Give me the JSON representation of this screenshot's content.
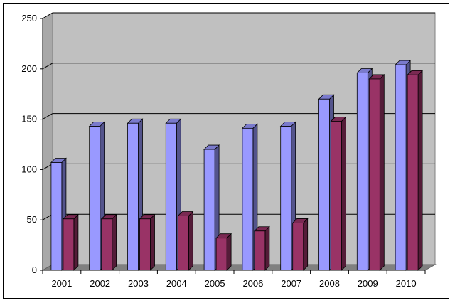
{
  "chart_data": {
    "type": "bar",
    "title": "",
    "xlabel": "",
    "ylabel": "",
    "ylim": [
      0,
      250
    ],
    "yticks": [
      0,
      50,
      100,
      150,
      200,
      250
    ],
    "grid": true,
    "three_d": true,
    "legend": "none",
    "categories": [
      "2001",
      "2002",
      "2003",
      "2004",
      "2005",
      "2006",
      "2007",
      "2008",
      "2009",
      "2010"
    ],
    "series": [
      {
        "values": [
          107,
          143,
          146,
          146,
          120,
          141,
          143,
          170,
          196,
          204
        ],
        "color": "#9999ff"
      },
      {
        "values": [
          51,
          51,
          51,
          54,
          32,
          39,
          47,
          148,
          190,
          194
        ],
        "color": "#993366"
      }
    ],
    "colors": {
      "plot_wall": "#c0c0c0",
      "floor": "#808080",
      "gridline": "#000000"
    }
  }
}
